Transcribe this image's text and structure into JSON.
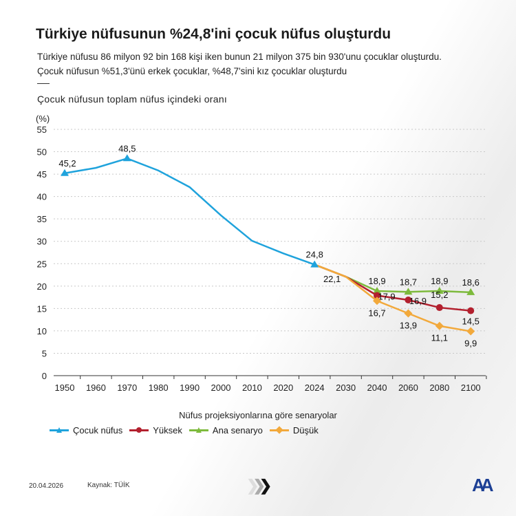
{
  "header": {
    "title": "Türkiye nüfusunun %24,8'ini çocuk nüfus oluşturdu",
    "subtitle": "Türkiye nüfusu 86 milyon 92 bin 168 kişi iken bunun 21 milyon 375 bin 930'unu çocuklar oluşturdu. Çocuk nüfusun %51,3'ünü erkek çocuklar, %48,7'sini kız çocuklar oluşturdu"
  },
  "chart_data": {
    "type": "line",
    "title": "Çocuk nüfusun toplam nüfus içindeki oranı",
    "ylabel": "(%)",
    "ylim": [
      0,
      55
    ],
    "yticks": [
      0,
      5,
      10,
      15,
      20,
      25,
      30,
      35,
      40,
      45,
      50,
      55
    ],
    "grid": "horizontal dashed",
    "categories": [
      "1950",
      "1960",
      "1970",
      "1980",
      "1990",
      "2000",
      "2010",
      "2020",
      "2024",
      "2030",
      "2040",
      "2060",
      "2080",
      "2100"
    ],
    "legend_title": "Nüfus projeksiyonlarına göre senaryolar",
    "legend_position": "bottom",
    "series": [
      {
        "name": "Çocuk nüfus",
        "color": "#1fa3dc",
        "marker": "triangle",
        "values": [
          45.2,
          46.4,
          48.5,
          45.8,
          42.1,
          35.8,
          30.1,
          27.3,
          24.8,
          null,
          null,
          null,
          null,
          null
        ],
        "labels": {
          "0": "45,2",
          "2": "48,5",
          "8": "24,8"
        }
      },
      {
        "name": "Yüksek",
        "color": "#b3202e",
        "marker": "circle",
        "values": [
          null,
          null,
          null,
          null,
          null,
          null,
          null,
          null,
          24.8,
          22.1,
          17.9,
          16.9,
          15.2,
          14.5
        ],
        "labels": {
          "10": "17,9",
          "11": "16,9",
          "12": "15,2",
          "13": "14,5"
        }
      },
      {
        "name": "Ana senaryo",
        "color": "#7dba3c",
        "marker": "triangle",
        "values": [
          null,
          null,
          null,
          null,
          null,
          null,
          null,
          null,
          24.8,
          22.1,
          18.9,
          18.7,
          18.9,
          18.6
        ],
        "labels": {
          "10": "18,9",
          "11": "18,7",
          "12": "18,9",
          "13": "18,6"
        }
      },
      {
        "name": "Düşük",
        "color": "#f2a93b",
        "marker": "diamond",
        "values": [
          null,
          null,
          null,
          null,
          null,
          null,
          null,
          null,
          24.8,
          22.1,
          16.7,
          13.9,
          11.1,
          9.9
        ],
        "labels": {
          "10": "16,7",
          "11": "13,9",
          "12": "11,1",
          "13": "9,9"
        }
      }
    ],
    "annotations": [
      {
        "category": "2030",
        "text": "22,1"
      }
    ]
  },
  "footer": {
    "date": "20.04.2026",
    "source": "Kaynak: TÜİK",
    "logo": "AA"
  }
}
